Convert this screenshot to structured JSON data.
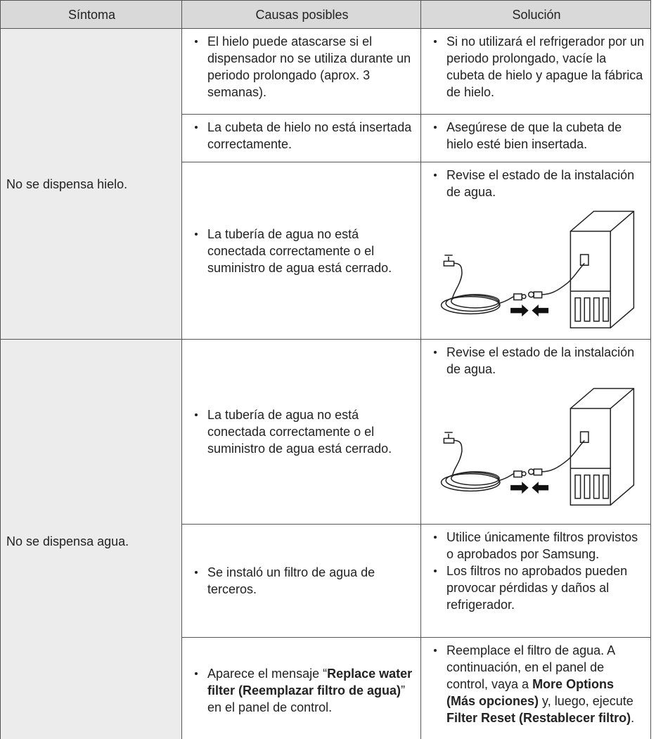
{
  "table": {
    "headers": [
      "Síntoma",
      "Causas posibles",
      "Solución"
    ],
    "groups": [
      {
        "symptom": "No se dispensa hielo.",
        "rows": [
          {
            "causes": [
              "El hielo puede atascarse si el dispensador no se utiliza durante un periodo prolongado (aprox. 3 semanas)."
            ],
            "solutions": [
              "Si no utilizará el refrigerador por un periodo prolongado, vacíe la cubeta de hielo y apague la fábrica de hielo."
            ]
          },
          {
            "causes": [
              "La cubeta de hielo no está insertada correctamente."
            ],
            "solutions": [
              "Asegúrese de que la cubeta de hielo esté bien insertada."
            ]
          },
          {
            "causes": [
              "La tubería de agua no está conectada correctamente o el suministro de agua está cerrado."
            ],
            "solutions": [
              "Revise el estado de la instalación de agua."
            ]
          }
        ]
      },
      {
        "symptom": "No se dispensa agua.",
        "rows": [
          {
            "causes": [
              "La tubería de agua no está conectada correctamente o el suministro de agua está cerrado."
            ],
            "solutions": [
              "Revise el estado de la instalación de agua."
            ]
          },
          {
            "causes": [
              "Se instaló un filtro de agua de terceros."
            ],
            "solutions": [
              "Utilice únicamente filtros provistos o aprobados por Samsung.",
              "Los filtros no aprobados pueden provocar pérdidas y daños al refrigerador."
            ]
          },
          {
            "causes": [
              [
                "Aparece el mensaje “",
                "Replace water filter (Reemplazar filtro de agua)",
                "” en el panel de control."
              ]
            ],
            "solutions": [
              [
                "Reemplace el filtro de agua. A continuación, en el panel de control, vaya a ",
                "More Options (Más opciones)",
                " y, luego, ejecute ",
                "Filter Reset (Restablecer filtro)",
                "."
              ]
            ]
          }
        ]
      }
    ]
  }
}
